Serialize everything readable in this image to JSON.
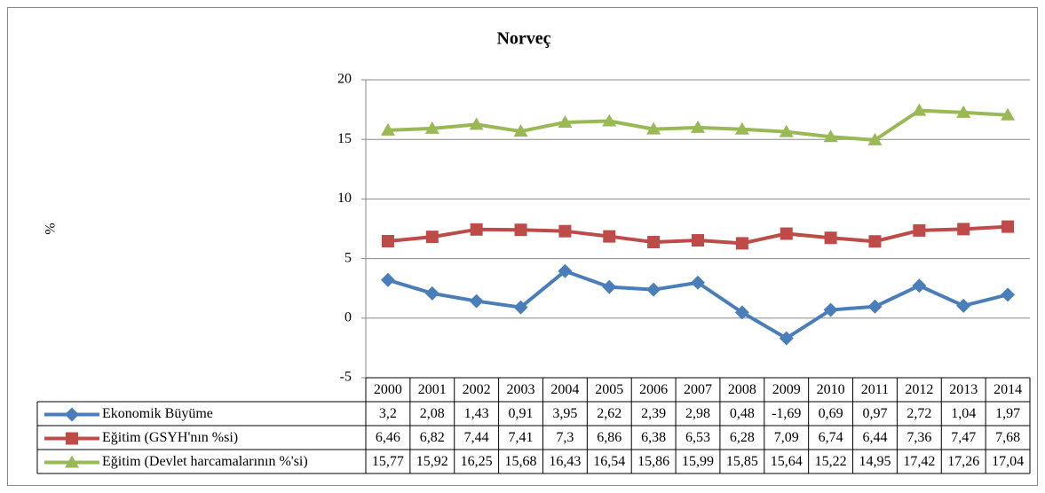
{
  "chart_data": {
    "type": "line",
    "title": "Norveç",
    "y_label": "%",
    "categories": [
      "2000",
      "2001",
      "2002",
      "2003",
      "2004",
      "2005",
      "2006",
      "2007",
      "2008",
      "2009",
      "2010",
      "2011",
      "2012",
      "2013",
      "2014"
    ],
    "series": [
      {
        "name": "Ekonomik Büyüme",
        "color": "#4a7ebb",
        "marker": "diamond",
        "values": [
          3.2,
          2.08,
          1.43,
          0.91,
          3.95,
          2.62,
          2.39,
          2.98,
          0.48,
          -1.69,
          0.69,
          0.97,
          2.72,
          1.04,
          1.97
        ],
        "value_labels": [
          "3,2",
          "2,08",
          "1,43",
          "0,91",
          "3,95",
          "2,62",
          "2,39",
          "2,98",
          "0,48",
          "-1,69",
          "0,69",
          "0,97",
          "2,72",
          "1,04",
          "1,97"
        ]
      },
      {
        "name": "Eğitim (GSYH'nın %si)",
        "color": "#be4b48",
        "marker": "square",
        "values": [
          6.46,
          6.82,
          7.44,
          7.41,
          7.3,
          6.86,
          6.38,
          6.53,
          6.28,
          7.09,
          6.74,
          6.44,
          7.36,
          7.47,
          7.68
        ],
        "value_labels": [
          "6,46",
          "6,82",
          "7,44",
          "7,41",
          "7,3",
          "6,86",
          "6,38",
          "6,53",
          "6,28",
          "7,09",
          "6,74",
          "6,44",
          "7,36",
          "7,47",
          "7,68"
        ]
      },
      {
        "name": "Eğitim (Devlet harcamalarının %'si)",
        "color": "#98b954",
        "marker": "triangle",
        "values": [
          15.77,
          15.92,
          16.25,
          15.68,
          16.43,
          16.54,
          15.86,
          15.99,
          15.85,
          15.64,
          15.22,
          14.95,
          17.42,
          17.26,
          17.04
        ],
        "value_labels": [
          "15,77",
          "15,92",
          "16,25",
          "15,68",
          "16,43",
          "16,54",
          "15,86",
          "15,99",
          "15,85",
          "15,64",
          "15,22",
          "14,95",
          "17,42",
          "17,26",
          "17,04"
        ]
      }
    ],
    "ylim": [
      -5,
      20
    ],
    "yticks": [
      -5,
      0,
      5,
      10,
      15,
      20
    ],
    "grid": true
  }
}
